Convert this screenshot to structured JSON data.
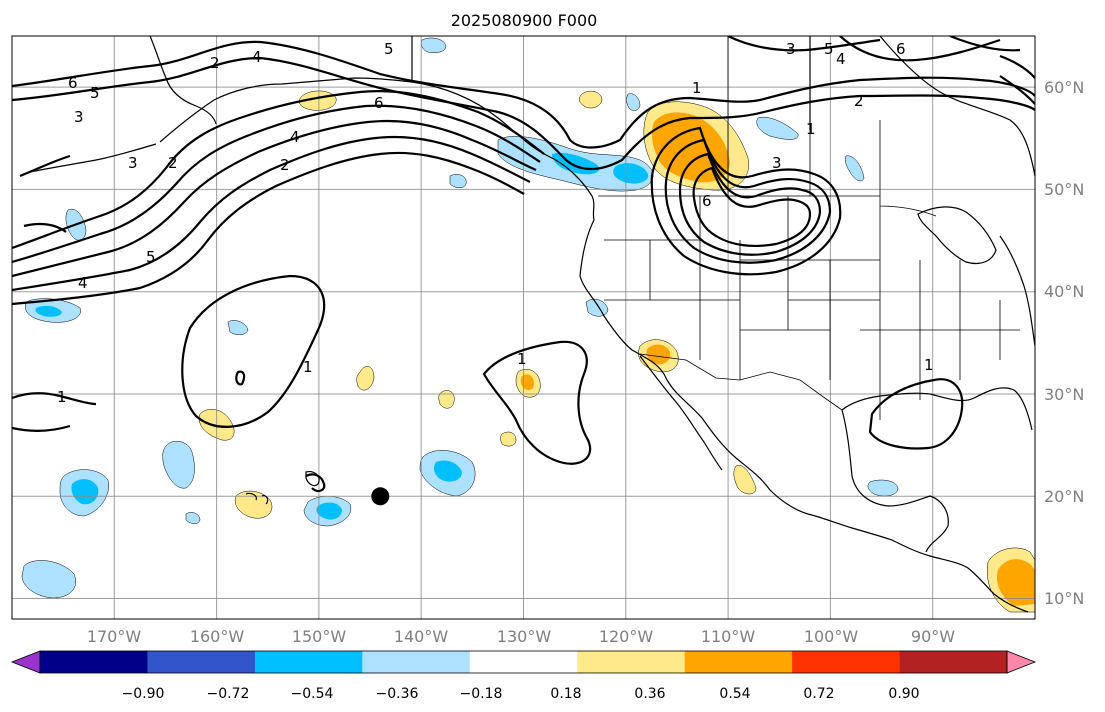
{
  "title": "2025080900 F000",
  "longitude_labels": [
    "170°W",
    "160°W",
    "150°W",
    "140°W",
    "130°W",
    "120°W",
    "110°W",
    "100°W",
    "90°W"
  ],
  "latitude_labels": [
    "60°N",
    "50°N",
    "40°N",
    "30°N",
    "20°N",
    "10°N"
  ],
  "colorbar": {
    "tick_labels": [
      "−0.90",
      "−0.72",
      "−0.54",
      "−0.36",
      "−0.18",
      "0.18",
      "0.36",
      "0.54",
      "0.72",
      "0.90"
    ],
    "colors": [
      "#9933cc",
      "#000088",
      "#3355cc",
      "#00bfff",
      "#aee0ff",
      "#ffffff",
      "#ffe98a",
      "#ffa500",
      "#ff3300",
      "#b22222",
      "#ff88aa"
    ]
  },
  "contour_labels": [
    "1",
    "1",
    "1",
    "1",
    "1",
    "1",
    "2",
    "2",
    "2",
    "2",
    "3",
    "3",
    "3",
    "3",
    "4",
    "4",
    "4",
    "4",
    "5",
    "5",
    "5",
    "5",
    "6",
    "6",
    "6",
    "6"
  ],
  "marker": {
    "symbol": "storm-center-dot",
    "lon": -144,
    "lat": 20
  },
  "chart_data": {
    "type": "heatmap",
    "title": "2025080900 F000",
    "x_axis": {
      "ticks": [
        "170°W",
        "160°W",
        "150°W",
        "140°W",
        "130°W",
        "120°W",
        "110°W",
        "100°W",
        "90°W"
      ]
    },
    "y_axis": {
      "ticks": [
        "60°N",
        "50°N",
        "40°N",
        "30°N",
        "20°N",
        "10°N"
      ]
    },
    "extent": {
      "lon": [
        -180,
        -80
      ],
      "lat": [
        8,
        65
      ]
    },
    "contour_levels": [
      1,
      2,
      3,
      4,
      5,
      6
    ],
    "colorbar_bounds": [
      -0.9,
      -0.72,
      -0.54,
      -0.36,
      -0.18,
      0.18,
      0.36,
      0.54,
      0.72,
      0.9
    ],
    "grid": true
  }
}
